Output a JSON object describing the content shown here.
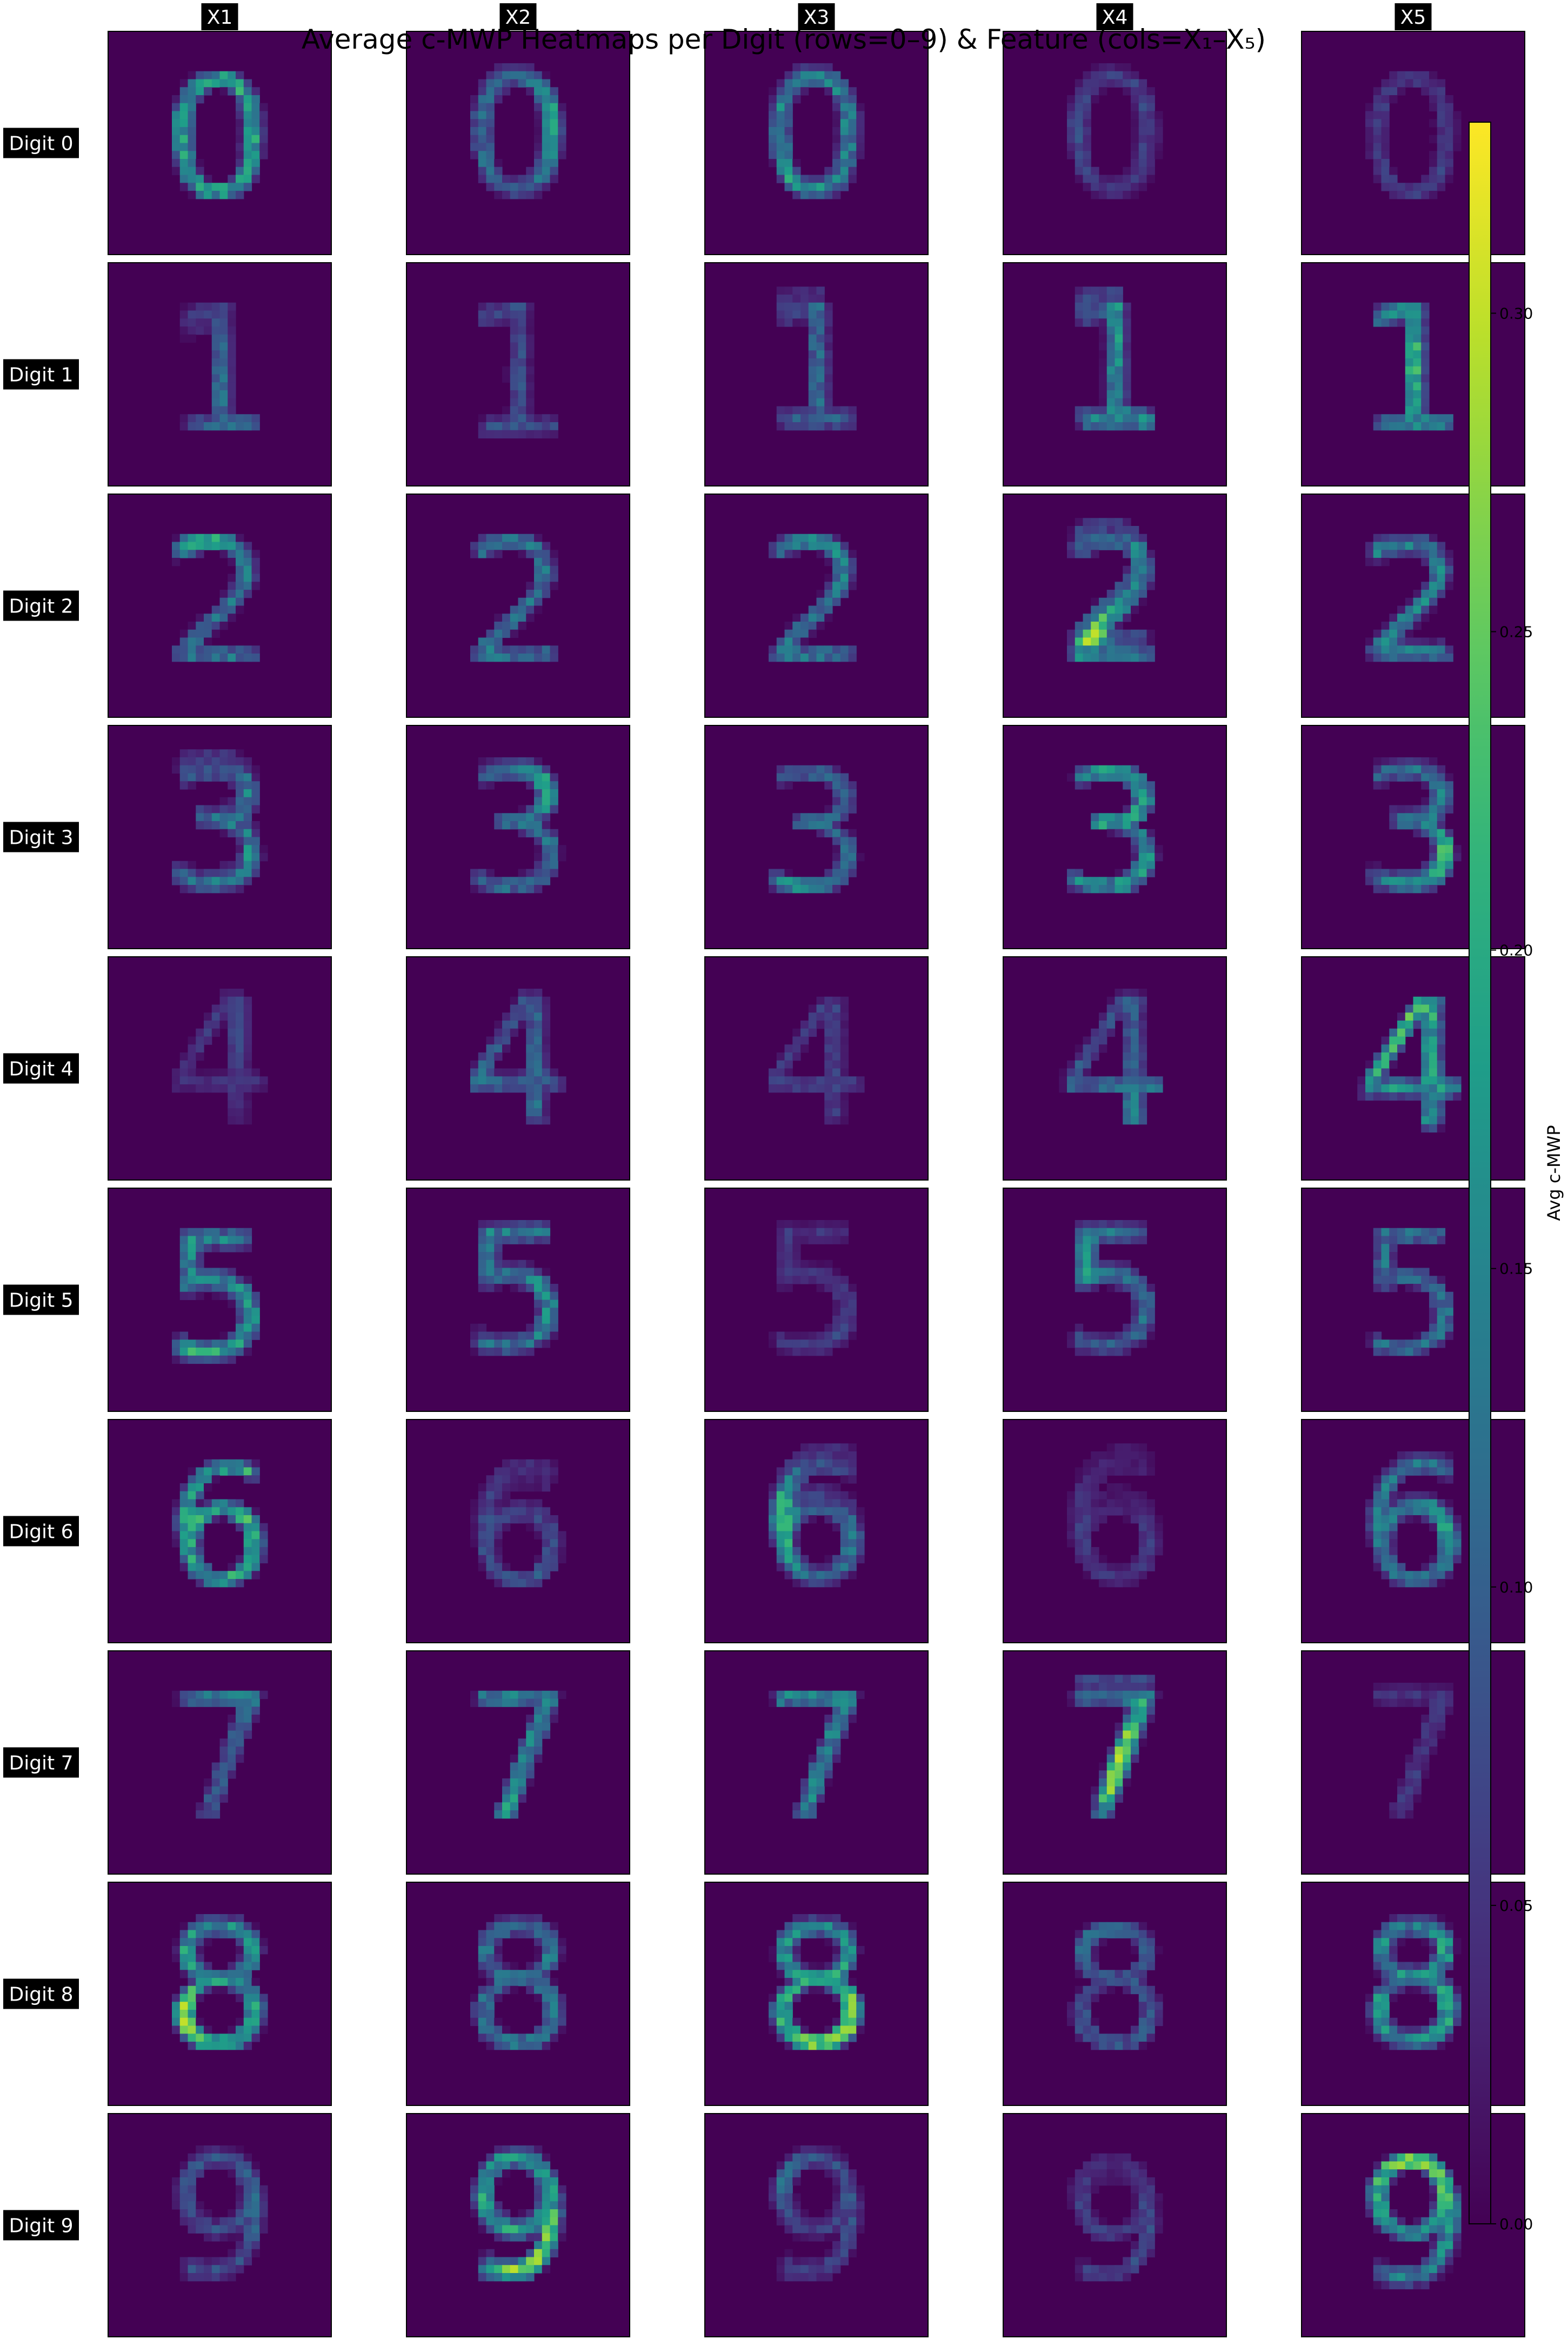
{
  "chart_data": {
    "type": "heatmap",
    "title": "Average c-MWP Heatmaps per Digit (rows=0–9) & Feature (cols=X₁–X₅)",
    "rows": [
      "Digit 0",
      "Digit 1",
      "Digit 2",
      "Digit 3",
      "Digit 4",
      "Digit 5",
      "Digit 6",
      "Digit 7",
      "Digit 8",
      "Digit 9"
    ],
    "columns": [
      "X1",
      "X2",
      "X3",
      "X4",
      "X5"
    ],
    "colorbar": {
      "label": "Avg c-MWP",
      "range": [
        0.0,
        0.33
      ],
      "ticks": [
        "0.00",
        "0.05",
        "0.10",
        "0.15",
        "0.20",
        "0.25",
        "0.30"
      ],
      "colormap": "viridis"
    },
    "grid_resolution": 28,
    "peak_intensity": [
      [
        0.33,
        0.2,
        0.27,
        0.12,
        0.1
      ],
      [
        0.16,
        0.14,
        0.2,
        0.3,
        0.24
      ],
      [
        0.22,
        0.22,
        0.22,
        0.3,
        0.28
      ],
      [
        0.26,
        0.2,
        0.18,
        0.32,
        0.24
      ],
      [
        0.08,
        0.18,
        0.12,
        0.16,
        0.3
      ],
      [
        0.3,
        0.26,
        0.1,
        0.2,
        0.22
      ],
      [
        0.33,
        0.14,
        0.22,
        0.1,
        0.2
      ],
      [
        0.16,
        0.24,
        0.26,
        0.3,
        0.1
      ],
      [
        0.3,
        0.22,
        0.28,
        0.16,
        0.3
      ],
      [
        0.16,
        0.32,
        0.14,
        0.12,
        0.28
      ]
    ]
  },
  "colors": {
    "background_cell": "#440154",
    "tag_background": "#000000",
    "tag_text": "#ffffff"
  }
}
